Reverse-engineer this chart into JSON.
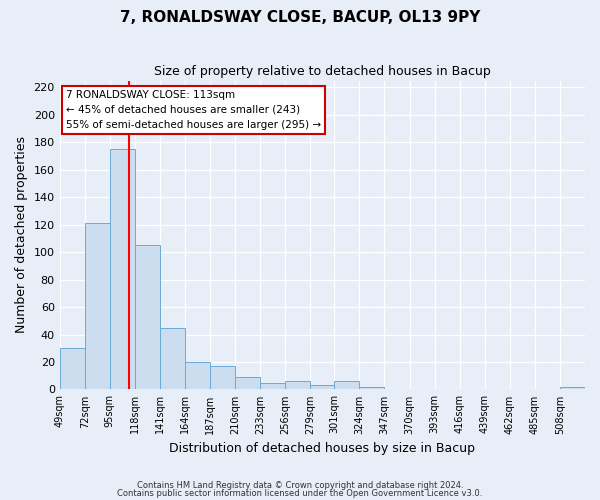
{
  "title": "7, RONALDSWAY CLOSE, BACUP, OL13 9PY",
  "subtitle": "Size of property relative to detached houses in Bacup",
  "xlabel": "Distribution of detached houses by size in Bacup",
  "ylabel": "Number of detached properties",
  "bar_color": "#ccddf0",
  "bar_edge_color": "#6aaad4",
  "bin_labels": [
    "49sqm",
    "72sqm",
    "95sqm",
    "118sqm",
    "141sqm",
    "164sqm",
    "187sqm",
    "210sqm",
    "233sqm",
    "256sqm",
    "279sqm",
    "301sqm",
    "324sqm",
    "347sqm",
    "370sqm",
    "393sqm",
    "416sqm",
    "439sqm",
    "462sqm",
    "485sqm",
    "508sqm"
  ],
  "bar_heights": [
    30,
    121,
    175,
    105,
    45,
    20,
    17,
    9,
    5,
    6,
    3,
    6,
    2,
    0,
    0,
    0,
    0,
    0,
    0,
    0,
    2
  ],
  "bin_edges": [
    49,
    72,
    95,
    118,
    141,
    164,
    187,
    210,
    233,
    256,
    279,
    301,
    324,
    347,
    370,
    393,
    416,
    439,
    462,
    485,
    508,
    531
  ],
  "red_line_x": 113,
  "ylim": [
    0,
    225
  ],
  "yticks": [
    0,
    20,
    40,
    60,
    80,
    100,
    120,
    140,
    160,
    180,
    200,
    220
  ],
  "annotation_line1": "7 RONALDSWAY CLOSE: 113sqm",
  "annotation_line2": "← 45% of detached houses are smaller (243)",
  "annotation_line3": "55% of semi-detached houses are larger (295) →",
  "footer_line1": "Contains HM Land Registry data © Crown copyright and database right 2024.",
  "footer_line2": "Contains public sector information licensed under the Open Government Licence v3.0.",
  "background_color": "#e8eef7",
  "plot_background_color": "#e8eef7"
}
